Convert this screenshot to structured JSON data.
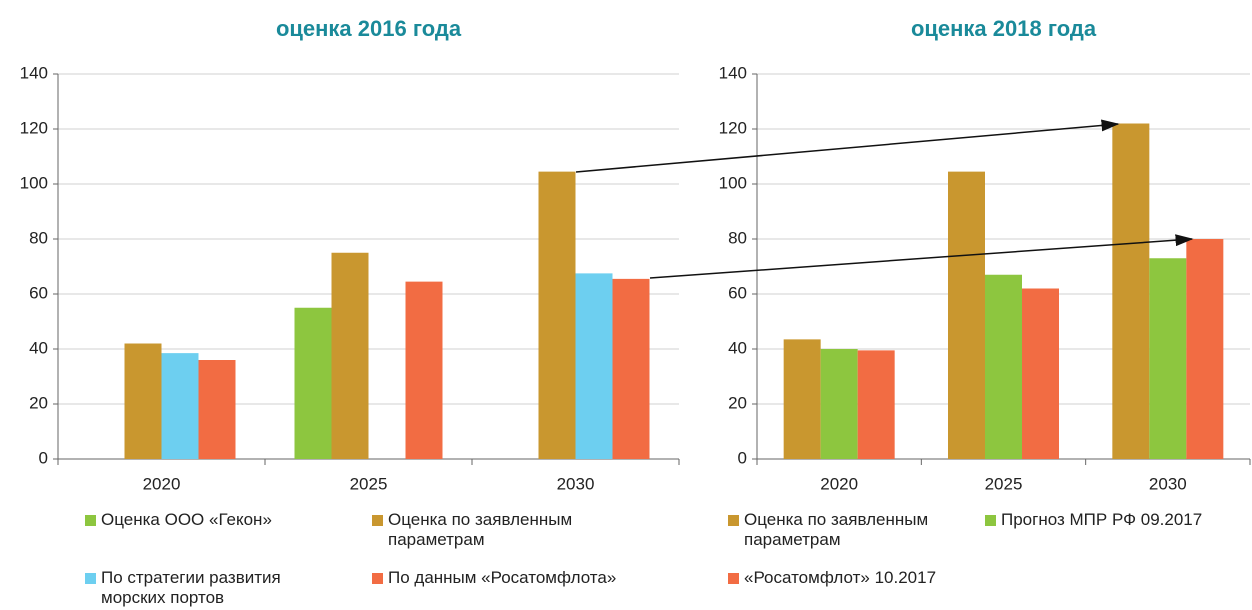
{
  "chart_data": [
    {
      "type": "bar",
      "title": "оценка 2016 года",
      "categories": [
        "2020",
        "2025",
        "2030"
      ],
      "series": [
        {
          "name": "Оценка ООО «Гекон»",
          "color": "#8dc63f",
          "values": [
            null,
            55,
            null
          ]
        },
        {
          "name": "Оценка по заявленным параметрам",
          "color": "#c9972f",
          "values": [
            42,
            75,
            104.5
          ]
        },
        {
          "name": "По стратегии развития морских портов",
          "color": "#6dcff0",
          "values": [
            38.5,
            null,
            67.5
          ]
        },
        {
          "name": "По данным «Росатомфлота»",
          "color": "#f26c43",
          "values": [
            36,
            64.5,
            65.5
          ]
        }
      ],
      "ylim": [
        0,
        140
      ],
      "yticks": [
        0,
        20,
        40,
        60,
        80,
        100,
        120,
        140
      ],
      "grid": true
    },
    {
      "type": "bar",
      "title": "оценка 2018 года",
      "categories": [
        "2020",
        "2025",
        "2030"
      ],
      "series": [
        {
          "name": "Оценка по заявленным параметрам",
          "color": "#c9972f",
          "values": [
            43.5,
            104.5,
            122
          ]
        },
        {
          "name": "Прогноз МПР РФ 09.2017",
          "color": "#8dc63f",
          "values": [
            40,
            67,
            73
          ]
        },
        {
          "name": "«Росатомфлот» 10.2017",
          "color": "#f26c43",
          "values": [
            39.5,
            62,
            80
          ]
        }
      ],
      "ylim": [
        0,
        140
      ],
      "yticks": [
        0,
        20,
        40,
        60,
        80,
        100,
        120,
        140
      ],
      "grid": true
    }
  ]
}
